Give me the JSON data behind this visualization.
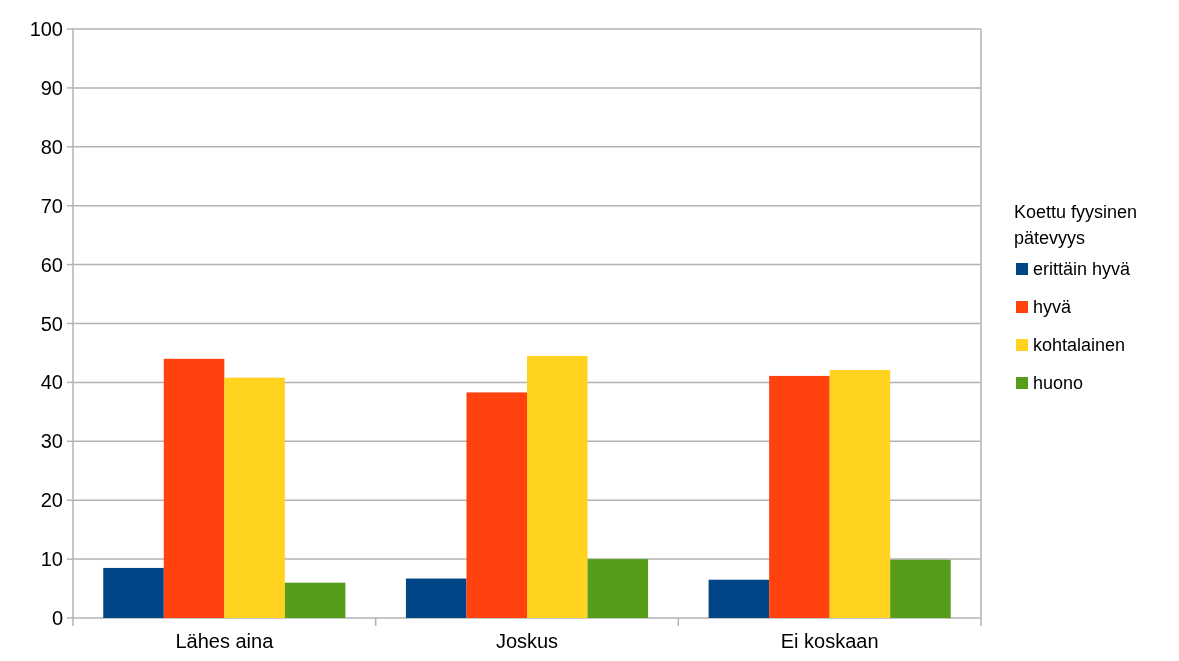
{
  "chart_data": {
    "type": "bar",
    "categories": [
      "Lähes aina",
      "Joskus",
      "Ei koskaan"
    ],
    "series": [
      {
        "name": "erittäin hyvä",
        "color": "#004586",
        "values": [
          8.5,
          6.7,
          6.5
        ]
      },
      {
        "name": "hyvä",
        "color": "#ff420e",
        "values": [
          44.0,
          38.3,
          41.1
        ]
      },
      {
        "name": "kohtalainen",
        "color": "#ffd320",
        "values": [
          40.8,
          44.5,
          42.1
        ]
      },
      {
        "name": "huono",
        "color": "#579d1c",
        "values": [
          6.0,
          10.0,
          9.9
        ]
      }
    ],
    "legend_title": "Koettu fyysinen pätevyys",
    "legend": "right",
    "ylim": [
      0,
      100
    ],
    "yticks": [
      0,
      10,
      20,
      30,
      40,
      50,
      60,
      70,
      80,
      90,
      100
    ],
    "grid": "y"
  }
}
